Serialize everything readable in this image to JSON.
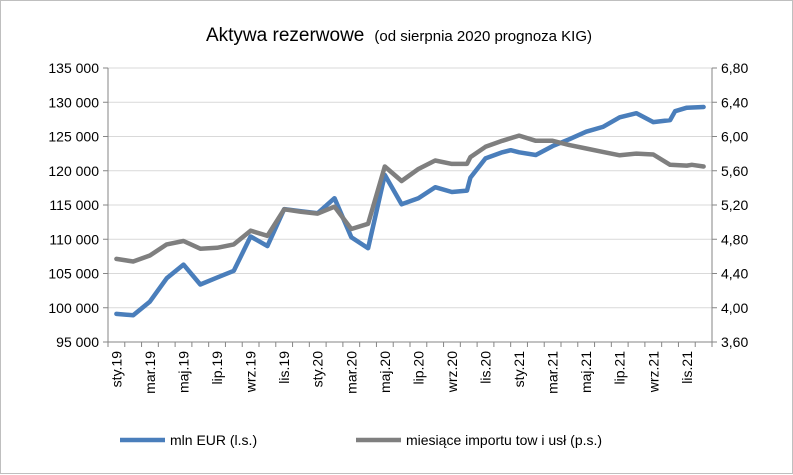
{
  "chart_data": {
    "type": "line",
    "title": "Aktywa rezerwowe",
    "subtitle": "(od sierpnia 2020 prognoza KIG)",
    "x_tick_labels": [
      "sty.19",
      "mar.19",
      "maj.19",
      "lip.19",
      "wrz.19",
      "lis.19",
      "sty.20",
      "mar.20",
      "maj.20",
      "lip.20",
      "wrz.20",
      "lis.20",
      "sty.21",
      "mar.21",
      "maj.21",
      "lip.21",
      "wrz.21",
      "lis.21"
    ],
    "y_left": {
      "min": 95000,
      "max": 135000,
      "step": 5000,
      "tick_labels": [
        "95 000",
        "100 000",
        "105 000",
        "110 000",
        "115 000",
        "120 000",
        "125 000",
        "130 000",
        "135 000"
      ]
    },
    "y_right": {
      "min": 3.6,
      "max": 6.8,
      "step": 0.4,
      "tick_labels": [
        "3,60",
        "4,00",
        "4,40",
        "4,80",
        "5,20",
        "5,60",
        "6,00",
        "6,40",
        "6,80"
      ]
    },
    "grid": "horizontal",
    "legend_position": "bottom",
    "series": [
      {
        "name": "mln EUR (l.s.)",
        "axis": "left",
        "color": "#4a7ebb",
        "points": [
          [
            0,
            99100
          ],
          [
            1,
            98900
          ],
          [
            2,
            100900
          ],
          [
            3,
            104300
          ],
          [
            4,
            106300
          ],
          [
            5,
            103400
          ],
          [
            6,
            104400
          ],
          [
            7,
            105400
          ],
          [
            8,
            110400
          ],
          [
            9,
            109000
          ],
          [
            10,
            114400
          ],
          [
            11,
            114100
          ],
          [
            12,
            113800
          ],
          [
            13,
            116000
          ],
          [
            14,
            110300
          ],
          [
            15,
            108700
          ],
          [
            16,
            119400
          ],
          [
            17,
            115100
          ],
          [
            18,
            116000
          ],
          [
            19,
            117600
          ],
          [
            20,
            116900
          ],
          [
            20.9,
            117100
          ],
          [
            21.1,
            119000
          ],
          [
            22,
            121800
          ],
          [
            23,
            122700
          ],
          [
            23.5,
            123000
          ],
          [
            24,
            122700
          ],
          [
            25,
            122300
          ],
          [
            26,
            123600
          ],
          [
            27,
            124600
          ],
          [
            28,
            125700
          ],
          [
            29,
            126400
          ],
          [
            30,
            127800
          ],
          [
            31,
            128400
          ],
          [
            32,
            127100
          ],
          [
            33,
            127400
          ],
          [
            33.3,
            128700
          ],
          [
            34,
            129200
          ],
          [
            35,
            129300
          ]
        ]
      },
      {
        "name": "miesiące importu tow i usł (p.s.)",
        "axis": "right",
        "color": "#7f7f7f",
        "points": [
          [
            0,
            4.57
          ],
          [
            1,
            4.54
          ],
          [
            2,
            4.61
          ],
          [
            3,
            4.74
          ],
          [
            4,
            4.78
          ],
          [
            5,
            4.69
          ],
          [
            6,
            4.7
          ],
          [
            7,
            4.74
          ],
          [
            8,
            4.9
          ],
          [
            9,
            4.84
          ],
          [
            10,
            5.15
          ],
          [
            11,
            5.12
          ],
          [
            12,
            5.1
          ],
          [
            13,
            5.18
          ],
          [
            14,
            4.92
          ],
          [
            15,
            4.98
          ],
          [
            16,
            5.65
          ],
          [
            17,
            5.48
          ],
          [
            18,
            5.62
          ],
          [
            19,
            5.72
          ],
          [
            20,
            5.68
          ],
          [
            20.9,
            5.68
          ],
          [
            21.1,
            5.76
          ],
          [
            22,
            5.88
          ],
          [
            23,
            5.95
          ],
          [
            24,
            6.01
          ],
          [
            25,
            5.95
          ],
          [
            26,
            5.95
          ],
          [
            27,
            5.9
          ],
          [
            28,
            5.86
          ],
          [
            29,
            5.82
          ],
          [
            30,
            5.78
          ],
          [
            31,
            5.8
          ],
          [
            32,
            5.79
          ],
          [
            33,
            5.67
          ],
          [
            34,
            5.66
          ],
          [
            34.3,
            5.67
          ],
          [
            35,
            5.65
          ]
        ]
      }
    ]
  }
}
